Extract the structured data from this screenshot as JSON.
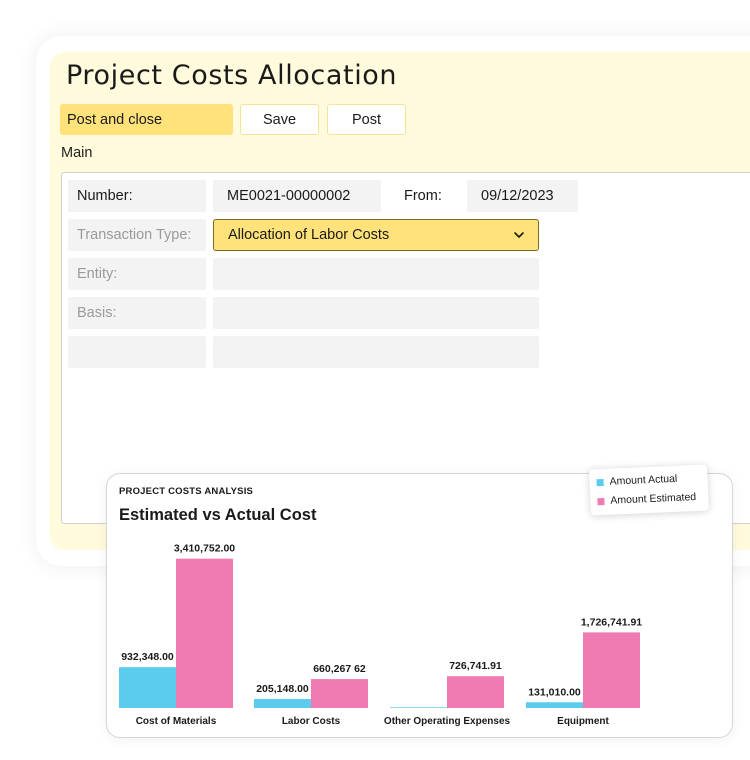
{
  "form": {
    "title": "Project Costs Allocation",
    "buttons": {
      "post_and_close": "Post and close",
      "save": "Save",
      "post": "Post"
    },
    "section": "Main",
    "fields": {
      "number_label": "Number:",
      "number_value": "ME0021-00000002",
      "from_label": "From:",
      "from_value": "09/12/2023",
      "transaction_type_label": "Transaction Type:",
      "transaction_type_value": "Allocation of Labor Costs",
      "entity_label": "Entity:",
      "basis_label": "Basis:"
    }
  },
  "colors": {
    "accent_yellow": "#ffe27a",
    "panel_yellow": "#fffbdc",
    "actual": "#5bcbee",
    "estimated": "#ef7bb2"
  },
  "chart_data": {
    "type": "bar",
    "kicker": "PROJECT COSTS ANALYSIS",
    "title": "Estimated vs Actual Cost",
    "categories": [
      "Cost of Materials",
      "Labor Costs",
      "Other Operating Expenses",
      "Equipment"
    ],
    "series": [
      {
        "name": "Amount Actual",
        "color": "#5bcbee",
        "values": [
          932348.0,
          205148.0,
          15000,
          131010.0
        ],
        "labels": [
          "932,348.00",
          "205,148.00",
          "",
          "131,010.00"
        ]
      },
      {
        "name": "Amount Estimated",
        "color": "#ef7bb2",
        "values": [
          3410752.0,
          660267.62,
          726741.91,
          1726741.91
        ],
        "labels": [
          "3,410,752.00",
          "660,267 62",
          "726,741.91",
          "1,726,741.91"
        ]
      }
    ],
    "ylim": [
      0,
      3700000
    ],
    "grid": false,
    "legend_position": "top-right"
  }
}
